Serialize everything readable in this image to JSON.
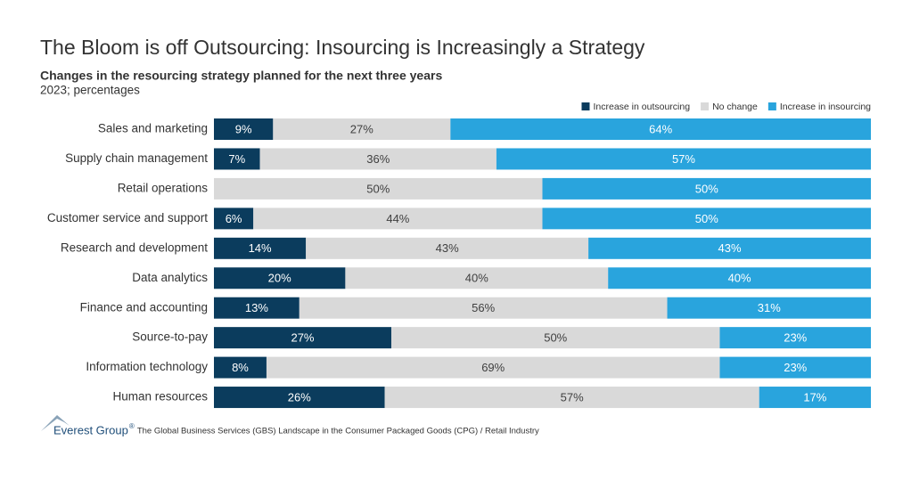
{
  "chart_data": {
    "type": "stacked-barh",
    "title": "The Bloom is off Outsourcing: Insourcing is Increasingly a Strategy",
    "subtitle": "Changes in the resourcing strategy planned for the next three years",
    "note": "2023; percentages",
    "categories": [
      "Sales and marketing",
      "Supply chain management",
      "Retail operations",
      "Customer service and support",
      "Research and development",
      "Data analytics",
      "Finance and accounting",
      "Source-to-pay",
      "Information technology",
      "Human resources"
    ],
    "xlim": [
      0,
      100
    ],
    "legend": "top-right",
    "series": [
      {
        "name": "Increase in outsourcing",
        "color": "#0b3c5d",
        "label_color": "#ffffff",
        "values": [
          9,
          7,
          0,
          6,
          14,
          20,
          13,
          27,
          8,
          26
        ],
        "value_labels": [
          "9%",
          "7%",
          null,
          "6%",
          "14%",
          "20%",
          "13%",
          "27%",
          "8%",
          "26%"
        ]
      },
      {
        "name": "No change",
        "color": "#d9d9d9",
        "label_color": "#404040",
        "values": [
          27,
          36,
          50,
          44,
          43,
          40,
          56,
          50,
          69,
          57
        ],
        "value_labels": [
          "27%",
          "36%",
          "50%",
          "44%",
          "43%",
          "40%",
          "56%",
          "50%",
          "69%",
          "57%"
        ]
      },
      {
        "name": "Increase in insourcing",
        "color": "#29a4dd",
        "label_color": "#ffffff",
        "values": [
          64,
          57,
          50,
          50,
          43,
          40,
          31,
          23,
          23,
          17
        ],
        "value_labels": [
          "64%",
          "57%",
          "50%",
          "50%",
          "43%",
          "40%",
          "31%",
          "23%",
          "23%",
          "17%"
        ]
      }
    ]
  },
  "footer": {
    "brand": "Everest Group",
    "mark": "®",
    "source": "The Global Business Services (GBS) Landscape in the Consumer Packaged Goods (CPG) / Retail Industry"
  }
}
